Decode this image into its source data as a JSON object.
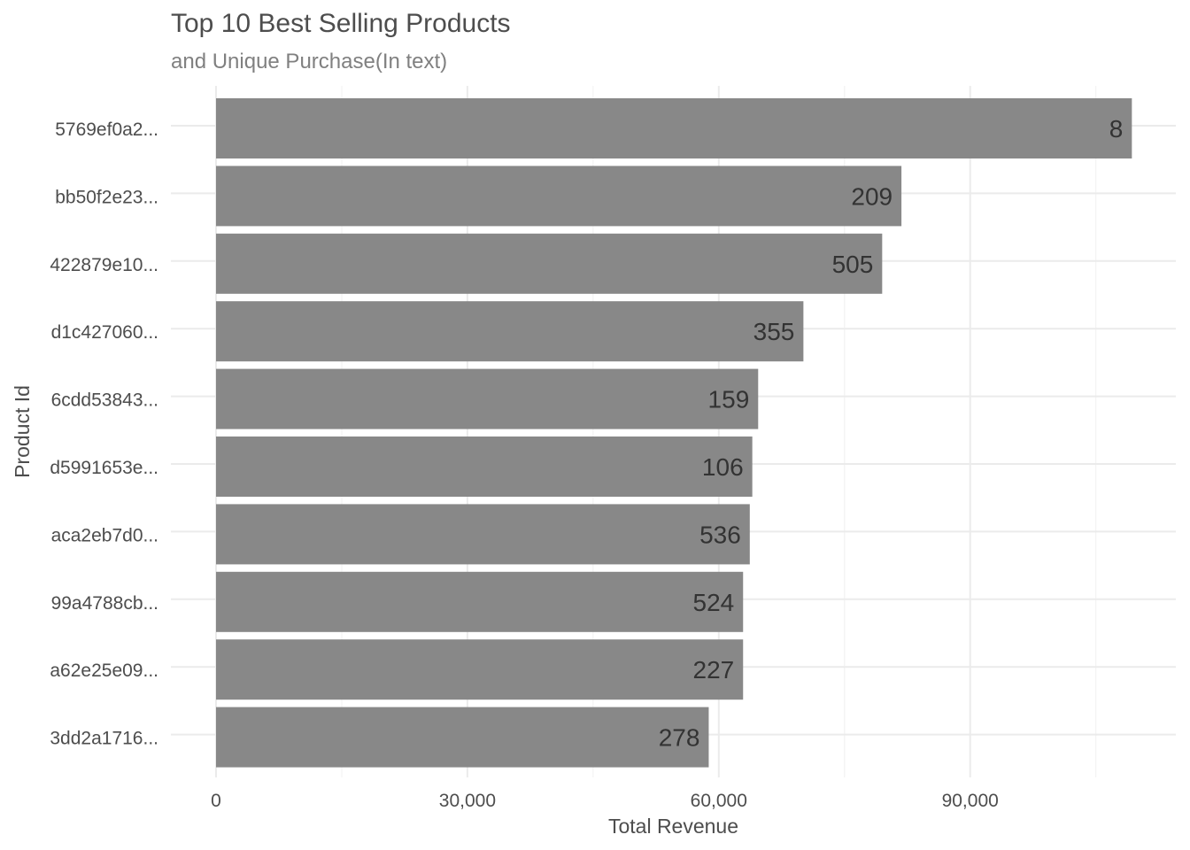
{
  "chart_data": {
    "type": "bar",
    "orientation": "horizontal",
    "title": "Top 10 Best Selling Products",
    "subtitle": "and Unique Purchase(In text)",
    "xlabel": "Total Revenue",
    "ylabel": "Product Id",
    "xlim": [
      0,
      115000
    ],
    "x_ticks": [
      0,
      30000,
      60000,
      90000
    ],
    "x_tick_labels": [
      "0",
      "30,000",
      "60,000",
      "90,000"
    ],
    "grid": true,
    "legend": "none",
    "bar_color": "#888888",
    "categories": [
      "5769ef0a2...",
      "bb50f2e23...",
      "422879e10...",
      "d1c427060...",
      "6cdd53843...",
      "d5991653e...",
      "aca2eb7d0...",
      "99a4788cb...",
      "a62e25e09...",
      "3dd2a1716..."
    ],
    "values": [
      109300,
      81800,
      79500,
      70100,
      64700,
      64000,
      63700,
      62900,
      62900,
      58800
    ],
    "data_labels": [
      "8",
      "209",
      "505",
      "355",
      "159",
      "106",
      "536",
      "524",
      "227",
      "278"
    ]
  }
}
